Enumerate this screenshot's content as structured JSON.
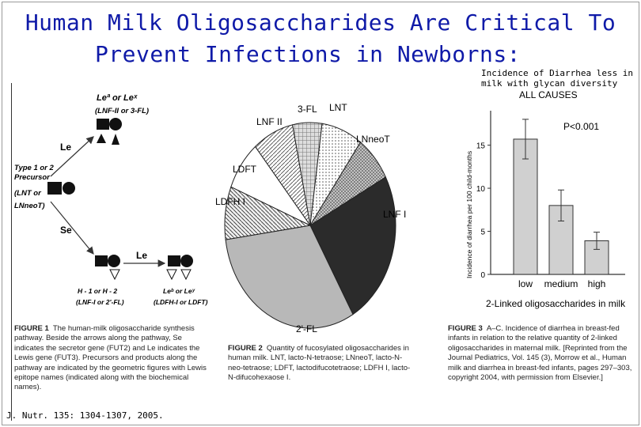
{
  "title": {
    "line1": "Human Milk Oligosaccharides Are Critical To",
    "line2": "Prevent Infections in Newborns:"
  },
  "note": {
    "line1": "Incidence of Diarrhea less in",
    "line2": "milk with glycan diversity"
  },
  "pathway": {
    "top_label": "Leª or Leˣ",
    "top_sub": "(LNF-II or 3-FL)",
    "le_label": "Le",
    "se_label": "Se",
    "precursor": [
      "Type 1 or 2",
      "Precursor",
      "(LNT or",
      "LNneoT)"
    ],
    "le_label2": "Le",
    "h_label": [
      "H - 1 or H - 2",
      "(LNF-I or 2'-FL)"
    ],
    "bottom_right": [
      "Leᵇ or Leʸ",
      "(LDFH-I or LDFT)"
    ],
    "caption_title": "FIGURE 1",
    "caption": "The human-milk oligosaccharide synthesis pathway. Beside the arrows along the pathway, Se indicates the secretor gene (FUT2) and Le indicates the Lewis gene (FUT3). Precursors and products along the pathway are indicated by the geometric figures with Lewis epitope names (indicated along with the biochemical names)."
  },
  "pie": {
    "labels": [
      "3-FL",
      "LNT",
      "LNneoT",
      "LNF I",
      "2'-FL",
      "LDFH I",
      "LDFT",
      "LNF II"
    ],
    "caption_title": "FIGURE 2",
    "caption": "Quantity of fucosylated oligosaccharides in human milk. LNT, lacto-N-tetraose; LNneoT, lacto-N-neo-tetraose; LDFT, lactodifucotetraose; LDFH I, lacto-N-difucohexaose I."
  },
  "chart_data": {
    "type": "bar",
    "title": "ALL CAUSES",
    "annotation": "P<0.001",
    "categories": [
      "low",
      "medium",
      "high"
    ],
    "values": [
      15.7,
      8.0,
      3.9
    ],
    "errors": [
      2.3,
      1.8,
      1.0
    ],
    "ylabel": "Incidence of diarrhea per 100 child-months",
    "xlabel": "2-Linked oligosaccharides in milk",
    "yticks": [
      "0",
      "5",
      "10",
      "15"
    ],
    "ylim": [
      0,
      19
    ],
    "grid": false
  },
  "fig3": {
    "caption_title": "FIGURE 3",
    "caption": "A–C. Incidence of diarrhea in breast-fed infants in relation to the relative quantity of 2-linked oligosaccharides in maternal milk. [Reprinted from the Journal Pediatrics, Vol. 145 (3), Morrow et al., Human milk and diarrhea in breast-fed infants, pages 297–303, copyright 2004, with permission from Elsevier.]"
  },
  "citation": "J. Nutr. 135: 1304-1307, 2005."
}
